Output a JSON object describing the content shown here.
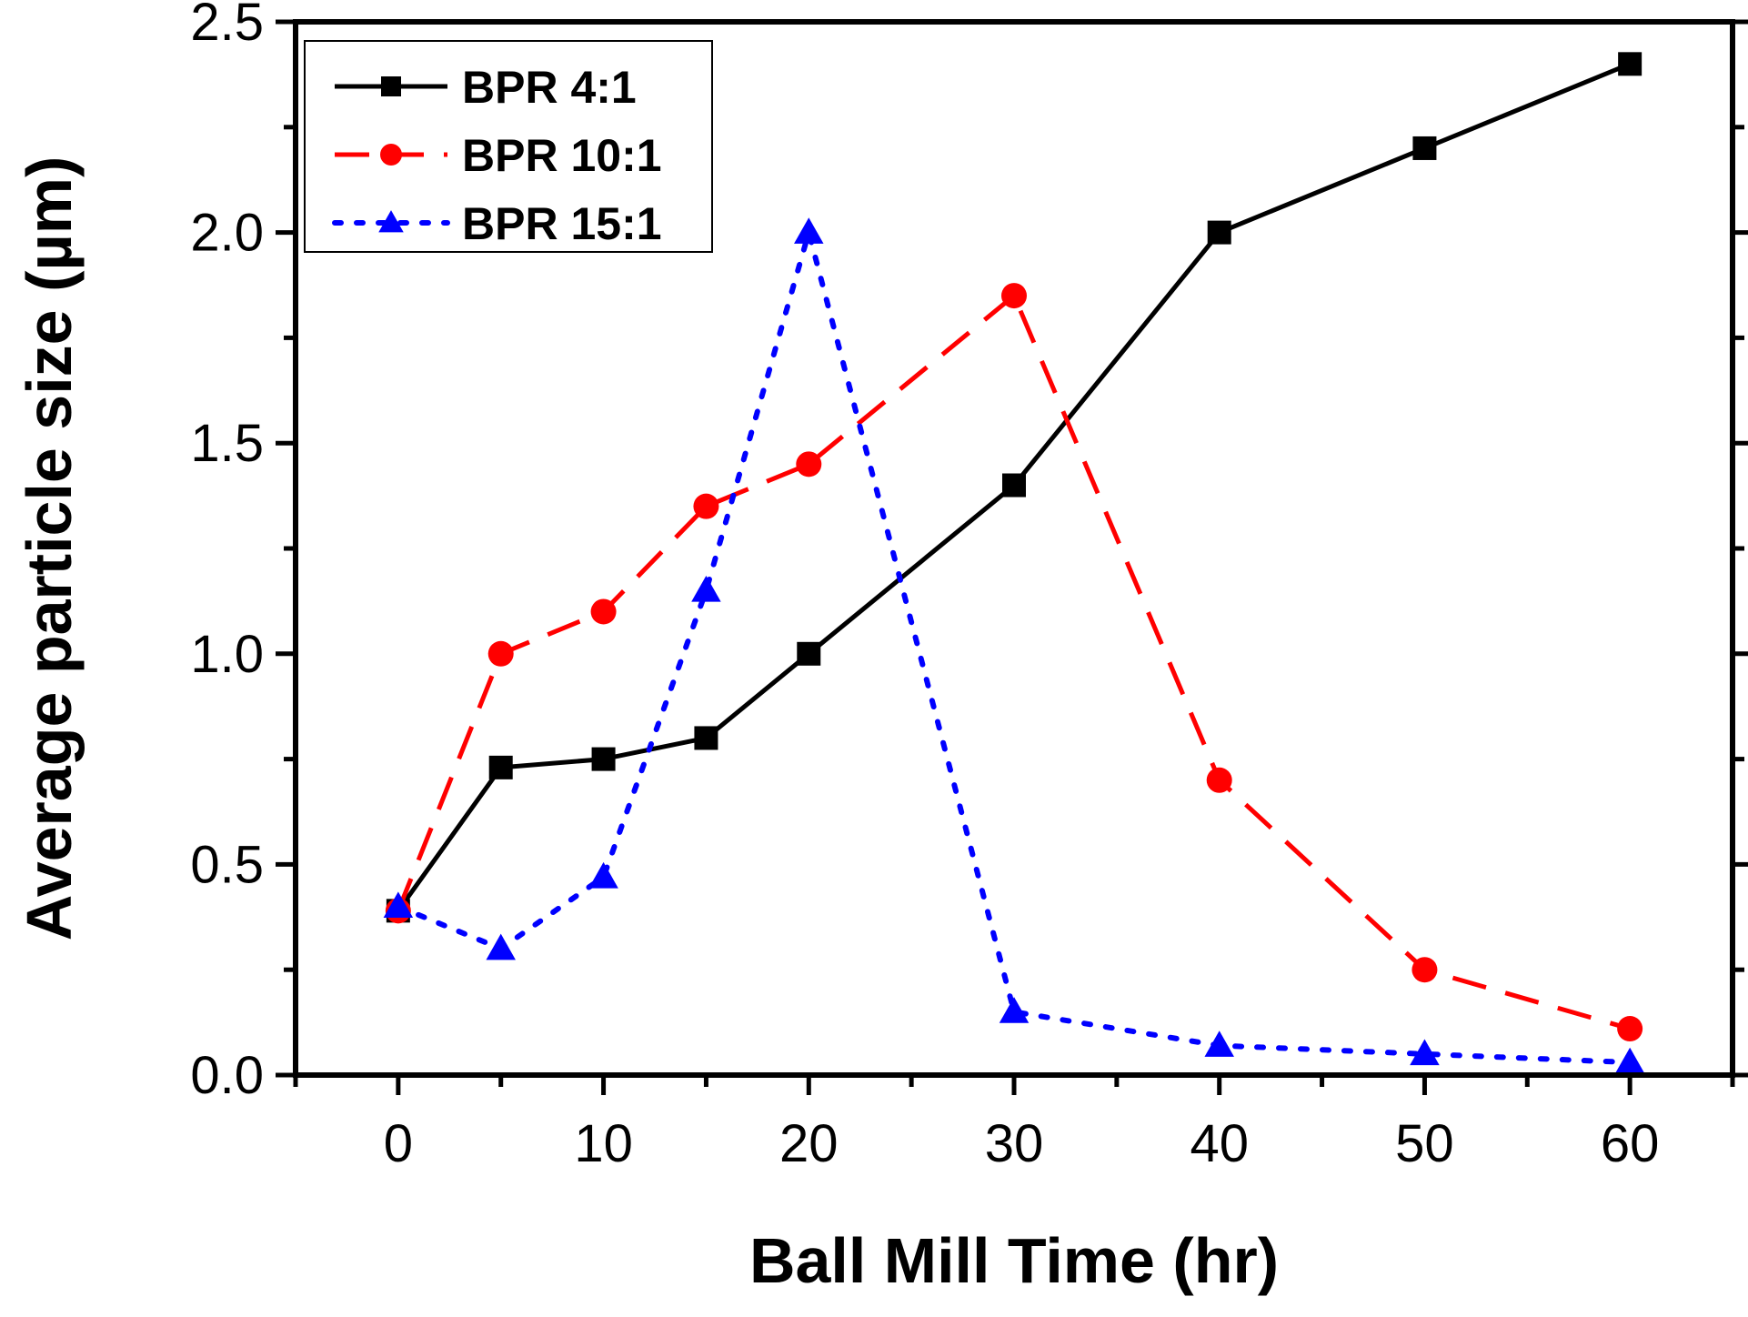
{
  "chart_data": {
    "type": "line",
    "title": "",
    "xlabel": "Ball Mill Time (hr)",
    "ylabel": "Average particle size (µm)",
    "xlim": [
      -5,
      65
    ],
    "ylim": [
      0,
      2.5
    ],
    "xticks": [
      0,
      10,
      20,
      30,
      40,
      50,
      60
    ],
    "xtick_labels": [
      "0",
      "10",
      "20",
      "30",
      "40",
      "50",
      "60"
    ],
    "yticks": [
      0,
      0.5,
      1.0,
      1.5,
      2.0,
      2.5
    ],
    "ytick_labels": [
      "0.0",
      "0.5",
      "1.0",
      "1.5",
      "2.0",
      "2.5"
    ],
    "grid": false,
    "legend_position": "top-left",
    "series": [
      {
        "name": "BPR 4:1",
        "color": "#000000",
        "line_style": "solid",
        "marker": "square",
        "x": [
          0,
          5,
          10,
          15,
          20,
          30,
          40,
          50,
          60
        ],
        "y": [
          0.39,
          0.73,
          0.75,
          0.8,
          1.0,
          1.4,
          2.0,
          2.2,
          2.4
        ]
      },
      {
        "name": "BPR 10:1",
        "color": "#ff0000",
        "line_style": "dashed",
        "marker": "circle",
        "x": [
          0,
          5,
          10,
          15,
          20,
          30,
          40,
          50,
          60
        ],
        "y": [
          0.39,
          1.0,
          1.1,
          1.35,
          1.45,
          1.85,
          0.7,
          0.25,
          0.11
        ]
      },
      {
        "name": "BPR 15:1",
        "color": "#0000ff",
        "line_style": "dotted",
        "marker": "triangle",
        "x": [
          0,
          5,
          10,
          15,
          20,
          30,
          40,
          50,
          60
        ],
        "y": [
          0.4,
          0.3,
          0.47,
          1.15,
          2.0,
          0.15,
          0.07,
          0.05,
          0.03
        ]
      }
    ]
  }
}
